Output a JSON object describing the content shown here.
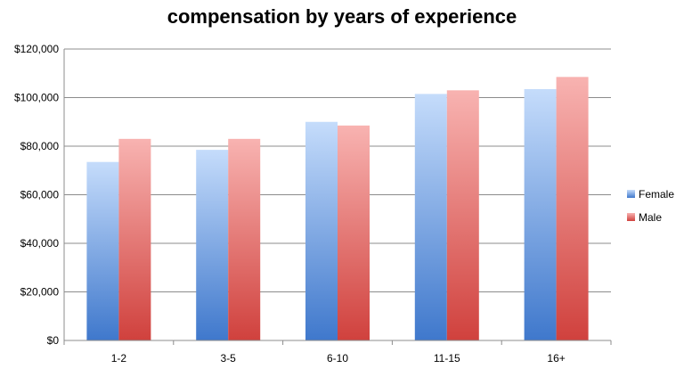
{
  "chart_data": {
    "type": "bar",
    "title": "compensation by years of experience",
    "categories": [
      "1-2",
      "3-5",
      "6-10",
      "11-15",
      "16+"
    ],
    "series": [
      {
        "name": "Female",
        "values": [
          73500,
          78500,
          90000,
          101500,
          103500
        ],
        "color": "#4a7fd0"
      },
      {
        "name": "Male",
        "values": [
          83000,
          83000,
          88500,
          103000,
          108500
        ],
        "color": "#d9504c"
      }
    ],
    "ylim": [
      0,
      120000
    ],
    "yticks": [
      "$0",
      "$20,000",
      "$40,000",
      "$60,000",
      "$80,000",
      "$100,000",
      "$120,000"
    ],
    "ytick_values": [
      0,
      20000,
      40000,
      60000,
      80000,
      100000,
      120000
    ],
    "grid": true,
    "legend": "right"
  }
}
